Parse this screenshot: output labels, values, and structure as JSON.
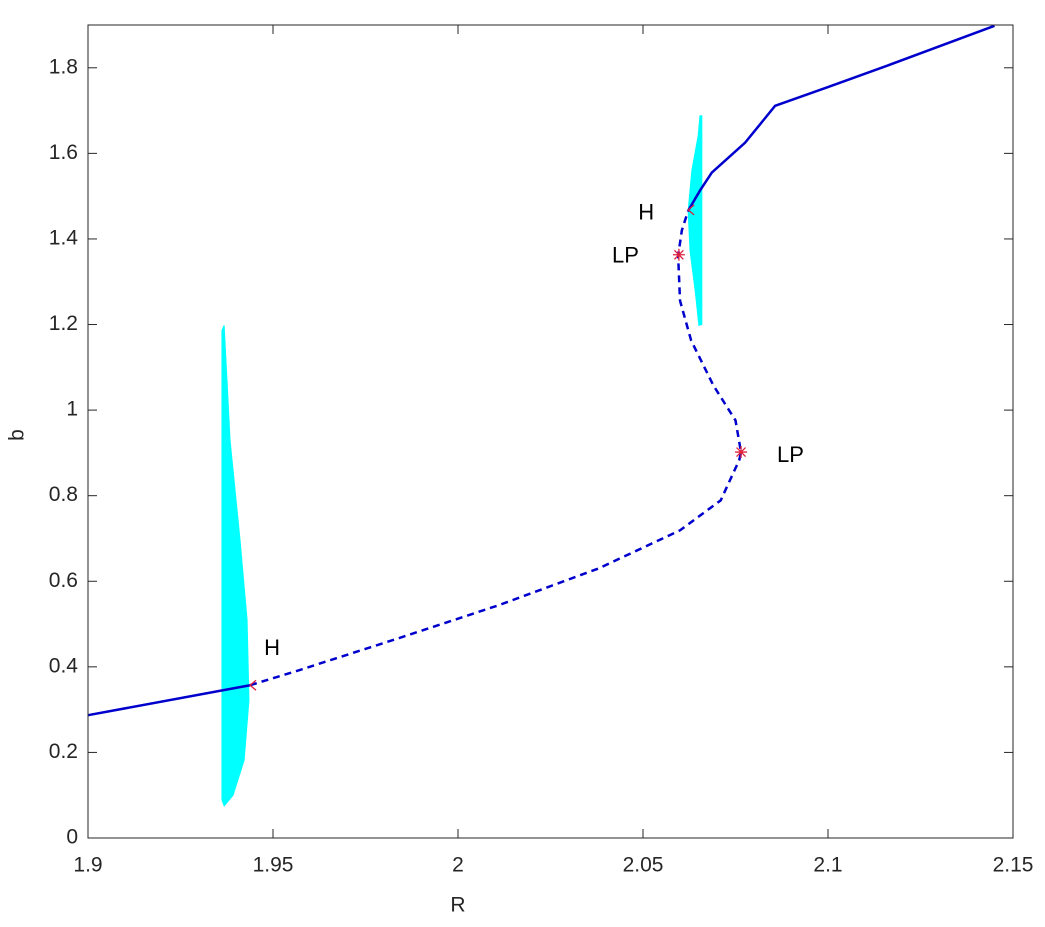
{
  "chart_data": {
    "type": "line",
    "xlabel": "R",
    "ylabel": "b",
    "xlim": [
      1.9,
      2.15
    ],
    "ylim": [
      0,
      1.9
    ],
    "xticks": [
      1.9,
      1.95,
      2,
      2.05,
      2.1,
      2.15
    ],
    "yticks": [
      0,
      0.2,
      0.4,
      0.6,
      0.8,
      1,
      1.2,
      1.4,
      1.6,
      1.8
    ],
    "grid": false,
    "envelopes": [
      {
        "color": "#00ffff",
        "x": [
          1.9368,
          1.9384,
          1.9411,
          1.943,
          1.9435,
          1.9422,
          1.9392,
          1.9368,
          1.9362,
          1.9362
        ],
        "y": [
          1.198,
          0.929,
          0.696,
          0.509,
          0.322,
          0.182,
          0.1,
          0.075,
          0.089,
          1.186
        ]
      },
      {
        "color": "#00ffff",
        "x": [
          2.0654,
          2.0649,
          2.0632,
          2.0622,
          2.0627,
          2.0641,
          2.0651,
          2.0659,
          2.0659
        ],
        "y": [
          1.688,
          1.641,
          1.56,
          1.466,
          1.373,
          1.279,
          1.198,
          1.2,
          1.688
        ]
      }
    ],
    "series": [
      {
        "color": "#0000cd",
        "style": "solid",
        "x": [
          1.9,
          1.9438
        ],
        "y": [
          0.287,
          0.357
        ]
      },
      {
        "color": "#0000cd",
        "style": "dashed",
        "x": [
          1.9438,
          1.957,
          1.984,
          2.011,
          2.038,
          2.06,
          2.071,
          2.076,
          2.0765,
          2.075,
          2.069,
          2.063,
          2.06,
          2.0595,
          2.0605,
          2.0622
        ],
        "y": [
          0.357,
          0.392,
          0.467,
          0.544,
          0.63,
          0.719,
          0.789,
          0.883,
          0.901,
          0.976,
          1.058,
          1.163,
          1.256,
          1.361,
          1.42,
          1.466
        ]
      },
      {
        "color": "#0000cd",
        "style": "solid",
        "x": [
          2.0622,
          2.0654,
          2.0686,
          2.0776,
          2.0857,
          2.1,
          2.116,
          2.145
        ],
        "y": [
          1.466,
          1.513,
          1.555,
          1.625,
          1.711,
          1.755,
          1.805,
          1.898
        ]
      }
    ],
    "points": [
      {
        "label": "H",
        "x": 1.9438,
        "y": 0.357,
        "color": "#e0203c"
      },
      {
        "label": "LP",
        "x": 2.0765,
        "y": 0.902,
        "color": "#e0203c"
      },
      {
        "label": "LP",
        "x": 2.0597,
        "y": 1.363,
        "color": "#e0203c"
      },
      {
        "label": "H",
        "x": 2.0622,
        "y": 1.468,
        "color": "#e0203c"
      }
    ]
  }
}
